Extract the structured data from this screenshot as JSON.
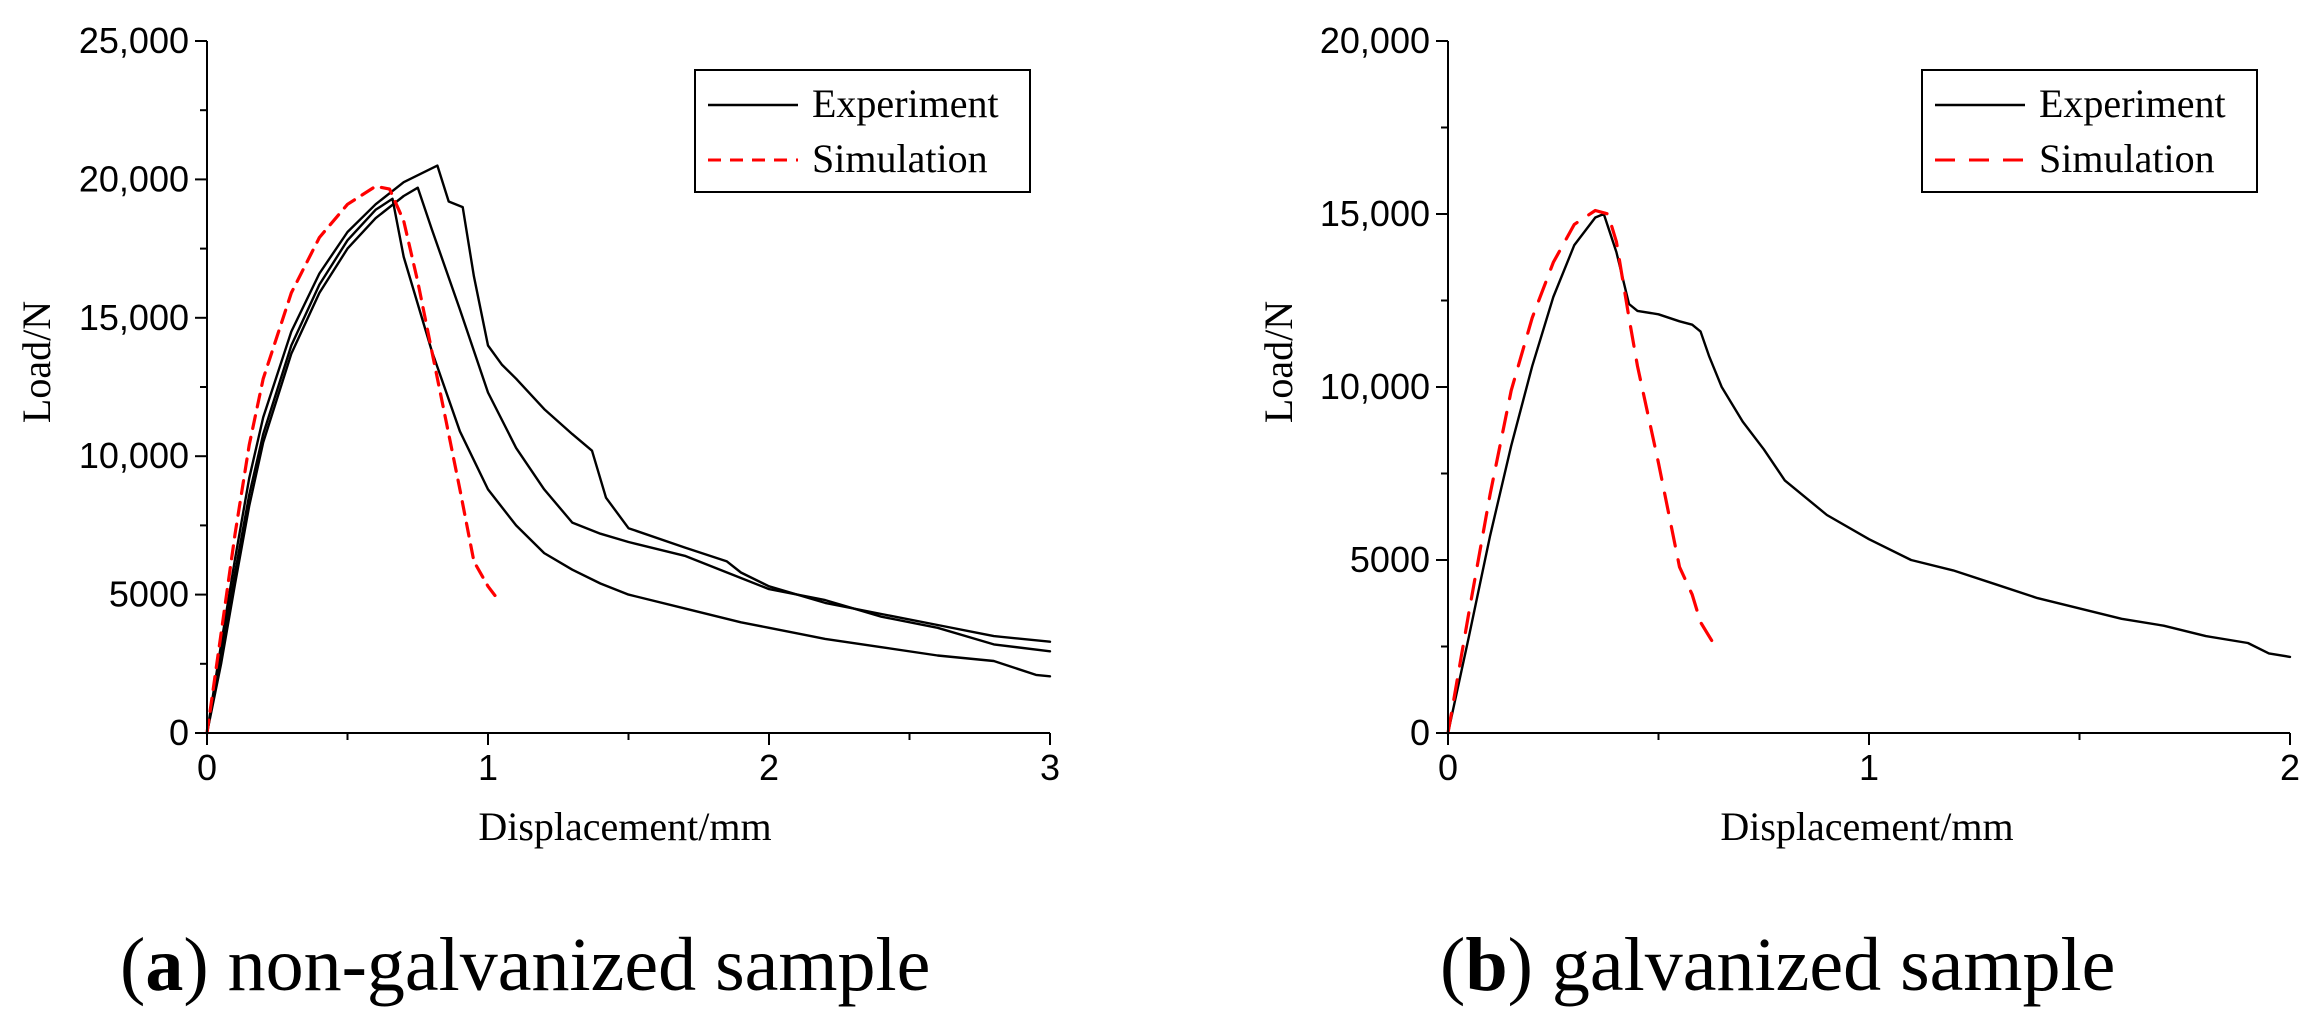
{
  "chart_data": [
    {
      "type": "line",
      "panel": "a",
      "caption_letter": "a",
      "caption_text": "non-galvanized sample",
      "xlabel": "Displacement/mm",
      "ylabel": "Load/N",
      "xlim": [
        0,
        3
      ],
      "ylim": [
        0,
        25000
      ],
      "xticks": [
        0,
        1,
        2,
        3
      ],
      "xtick_labels": [
        "0",
        "1",
        "2",
        "3"
      ],
      "yticks": [
        0,
        5000,
        10000,
        15000,
        20000,
        25000
      ],
      "ytick_labels": [
        "0",
        "5000",
        "10,000",
        "15,000",
        "20,000",
        "25,000"
      ],
      "legend": [
        "Experiment",
        "Simulation"
      ],
      "legend_position": "top-right",
      "series": [
        {
          "name": "Experiment",
          "style": "solid",
          "color": "#000000",
          "x": [
            0,
            0.05,
            0.1,
            0.15,
            0.2,
            0.3,
            0.4,
            0.5,
            0.6,
            0.66,
            0.7,
            0.8,
            0.9,
            1.0,
            1.1,
            1.2,
            1.3,
            1.4,
            1.5,
            1.7,
            1.9,
            2.0,
            2.2,
            2.4,
            2.6,
            2.8,
            2.95,
            3.0
          ],
          "y": [
            0,
            2800,
            5800,
            8600,
            10800,
            14000,
            16200,
            17800,
            18900,
            19300,
            17200,
            13800,
            10900,
            8800,
            7500,
            6500,
            5900,
            5400,
            5000,
            4500,
            4000,
            3800,
            3400,
            3100,
            2800,
            2600,
            2100,
            2050
          ]
        },
        {
          "name": "Experiment",
          "style": "solid",
          "color": "#000000",
          "x": [
            0,
            0.05,
            0.1,
            0.15,
            0.2,
            0.3,
            0.4,
            0.5,
            0.6,
            0.7,
            0.75,
            0.8,
            0.9,
            1.0,
            1.1,
            1.2,
            1.3,
            1.4,
            1.5,
            1.7,
            1.9,
            2.0,
            2.2,
            2.4,
            2.6,
            2.8,
            3.0
          ],
          "y": [
            0,
            2500,
            5400,
            8200,
            10500,
            13700,
            15900,
            17500,
            18600,
            19400,
            19700,
            18200,
            15300,
            12300,
            10300,
            8800,
            7600,
            7200,
            6900,
            6400,
            5600,
            5200,
            4800,
            4200,
            3800,
            3200,
            2950
          ]
        },
        {
          "name": "Experiment",
          "style": "solid",
          "color": "#000000",
          "x": [
            0,
            0.05,
            0.1,
            0.15,
            0.2,
            0.3,
            0.4,
            0.5,
            0.6,
            0.7,
            0.8,
            0.82,
            0.86,
            0.91,
            0.95,
            1.0,
            1.05,
            1.1,
            1.2,
            1.3,
            1.37,
            1.42,
            1.5,
            1.7,
            1.85,
            1.9,
            2.0,
            2.2,
            2.4,
            2.6,
            2.8,
            3.0
          ],
          "y": [
            0,
            3200,
            6300,
            9200,
            11400,
            14500,
            16600,
            18100,
            19100,
            19900,
            20400,
            20500,
            19200,
            19000,
            16500,
            14000,
            13300,
            12800,
            11700,
            10800,
            10200,
            8500,
            7400,
            6700,
            6200,
            5800,
            5300,
            4700,
            4300,
            3900,
            3500,
            3300
          ]
        },
        {
          "name": "Simulation",
          "style": "dashed",
          "color": "#ff0000",
          "x": [
            0,
            0.05,
            0.1,
            0.15,
            0.2,
            0.3,
            0.4,
            0.5,
            0.6,
            0.65,
            0.7,
            0.75,
            0.8,
            0.85,
            0.9,
            0.95,
            1.0,
            1.03
          ],
          "y": [
            0,
            3600,
            7200,
            10400,
            12800,
            15900,
            17900,
            19100,
            19750,
            19650,
            18500,
            16300,
            13800,
            11300,
            8800,
            6200,
            5300,
            4900
          ]
        }
      ]
    },
    {
      "type": "line",
      "panel": "b",
      "caption_letter": "b",
      "caption_text": "galvanized sample",
      "xlabel": "Displacement/mm",
      "ylabel": "Load/N",
      "xlim": [
        0,
        2
      ],
      "ylim": [
        0,
        20000
      ],
      "xticks": [
        0,
        1,
        2
      ],
      "xtick_labels": [
        "0",
        "1",
        "2"
      ],
      "yticks": [
        0,
        5000,
        10000,
        15000,
        20000
      ],
      "ytick_labels": [
        "0",
        "5000",
        "10,000",
        "15,000",
        "20,000"
      ],
      "legend": [
        "Experiment",
        "Simulation"
      ],
      "legend_position": "top-right",
      "series": [
        {
          "name": "Experiment",
          "style": "solid",
          "color": "#000000",
          "x": [
            0,
            0.05,
            0.1,
            0.15,
            0.2,
            0.25,
            0.3,
            0.35,
            0.37,
            0.4,
            0.43,
            0.45,
            0.5,
            0.55,
            0.58,
            0.6,
            0.62,
            0.65,
            0.7,
            0.75,
            0.8,
            0.9,
            1.0,
            1.1,
            1.2,
            1.3,
            1.4,
            1.5,
            1.6,
            1.7,
            1.8,
            1.9,
            1.95,
            2.0
          ],
          "y": [
            0,
            2800,
            5700,
            8300,
            10600,
            12600,
            14100,
            14900,
            15000,
            13900,
            12400,
            12200,
            12100,
            11900,
            11800,
            11600,
            10900,
            10000,
            9000,
            8200,
            7300,
            6300,
            5600,
            5000,
            4700,
            4300,
            3900,
            3600,
            3300,
            3100,
            2800,
            2600,
            2300,
            2200
          ]
        },
        {
          "name": "Simulation",
          "style": "dashed",
          "color": "#ff0000",
          "x": [
            0,
            0.05,
            0.1,
            0.15,
            0.2,
            0.25,
            0.3,
            0.35,
            0.38,
            0.4,
            0.43,
            0.45,
            0.5,
            0.55,
            0.58,
            0.6,
            0.63
          ],
          "y": [
            0,
            3500,
            6900,
            9900,
            12000,
            13600,
            14700,
            15100,
            15000,
            14200,
            12000,
            10600,
            7800,
            4800,
            4000,
            3200,
            2600
          ]
        }
      ]
    }
  ]
}
